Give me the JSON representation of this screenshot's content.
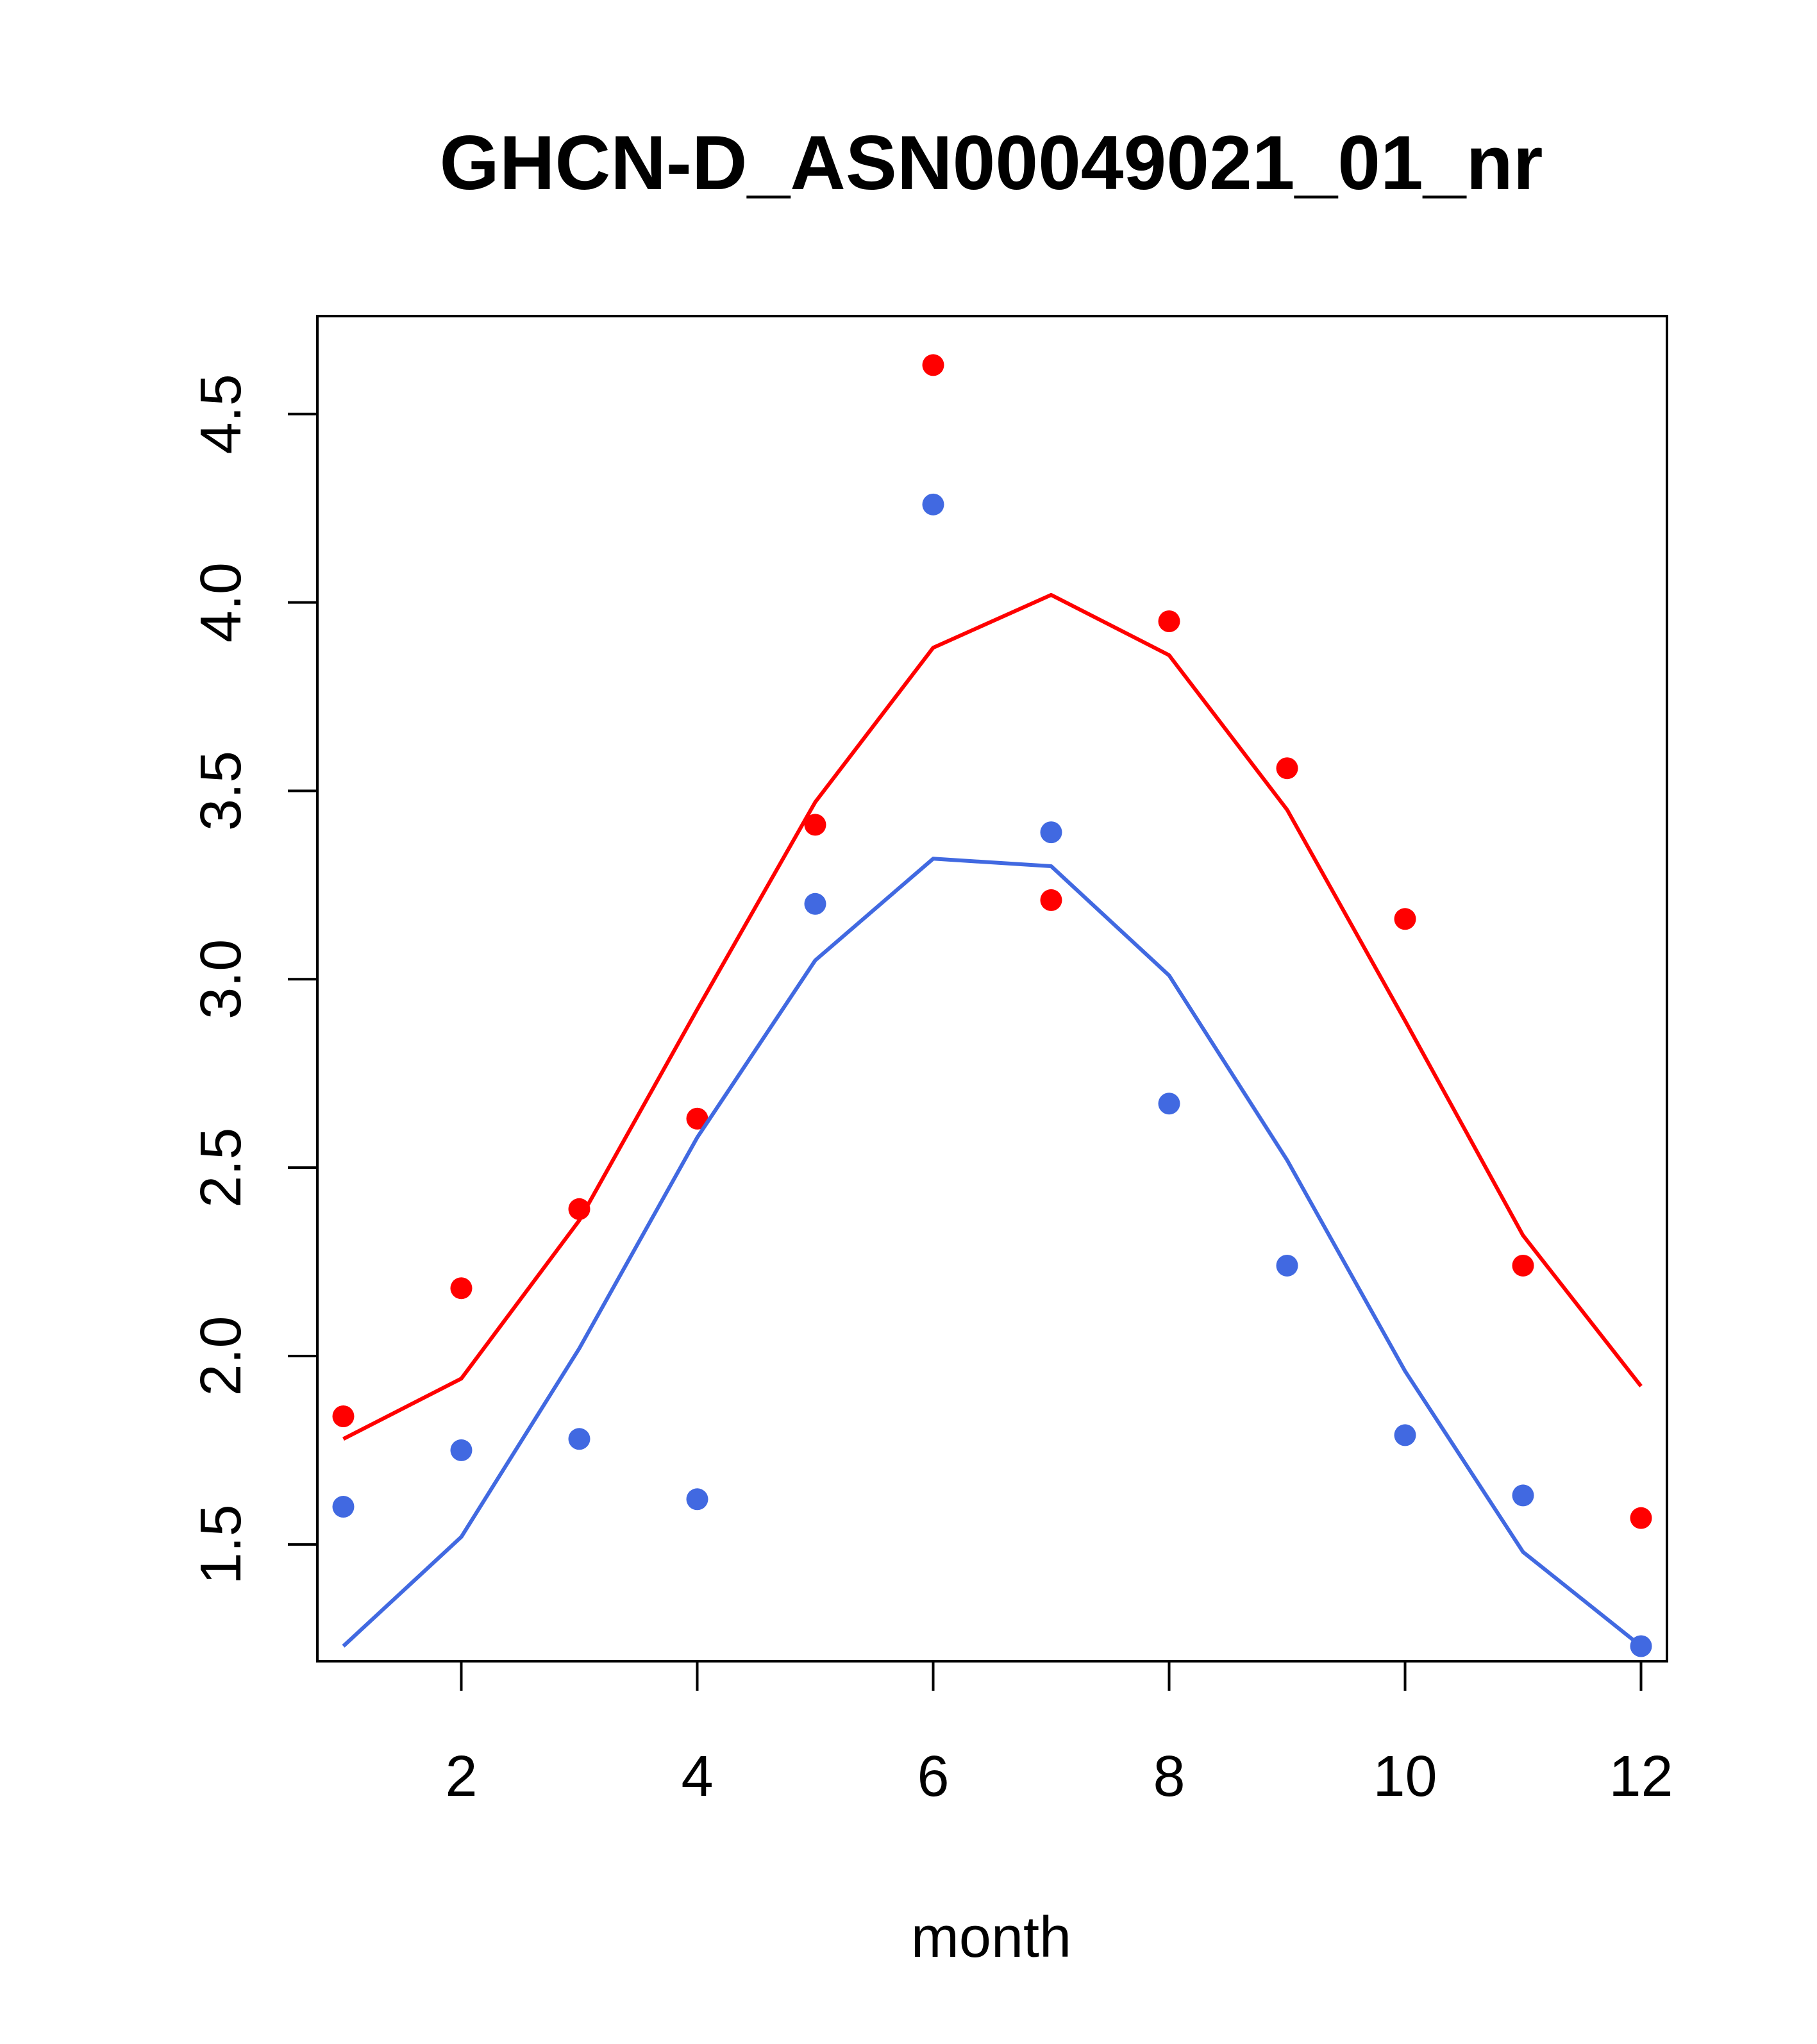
{
  "chart_data": {
    "type": "line",
    "title": "GHCN-D_ASN00049021_01_nr",
    "xlabel": "month",
    "ylabel": "",
    "xlim": [
      0.78,
      12.22
    ],
    "ylim": [
      1.19,
      4.76
    ],
    "xticks": [
      2,
      4,
      6,
      8,
      10,
      12
    ],
    "yticks": [
      1.5,
      2.0,
      2.5,
      3.0,
      3.5,
      4.0,
      4.5
    ],
    "xtick_labels": [
      "2",
      "4",
      "6",
      "8",
      "10",
      "12"
    ],
    "ytick_labels": [
      "1.5",
      "2.0",
      "2.5",
      "3.0",
      "3.5",
      "4.0",
      "4.5"
    ],
    "grid": false,
    "legend": "none",
    "x": [
      1,
      2,
      3,
      4,
      5,
      6,
      7,
      8,
      9,
      10,
      11,
      12
    ],
    "series": [
      {
        "color": "#ff0000",
        "points": [
          1.84,
          2.18,
          2.39,
          2.63,
          3.41,
          4.63,
          3.21,
          3.95,
          3.56,
          3.16,
          2.24,
          1.57
        ],
        "line": [
          1.78,
          1.94,
          2.36,
          2.92,
          3.47,
          3.88,
          4.02,
          3.86,
          3.45,
          2.89,
          2.32,
          1.92
        ]
      },
      {
        "color": "#4169e1",
        "points": [
          1.6,
          1.75,
          1.78,
          1.62,
          3.2,
          4.26,
          3.39,
          2.67,
          2.24,
          1.79,
          1.63,
          1.23
        ],
        "line": [
          1.23,
          1.52,
          2.02,
          2.58,
          3.05,
          3.32,
          3.3,
          3.01,
          2.52,
          1.96,
          1.48,
          1.23
        ]
      }
    ]
  }
}
